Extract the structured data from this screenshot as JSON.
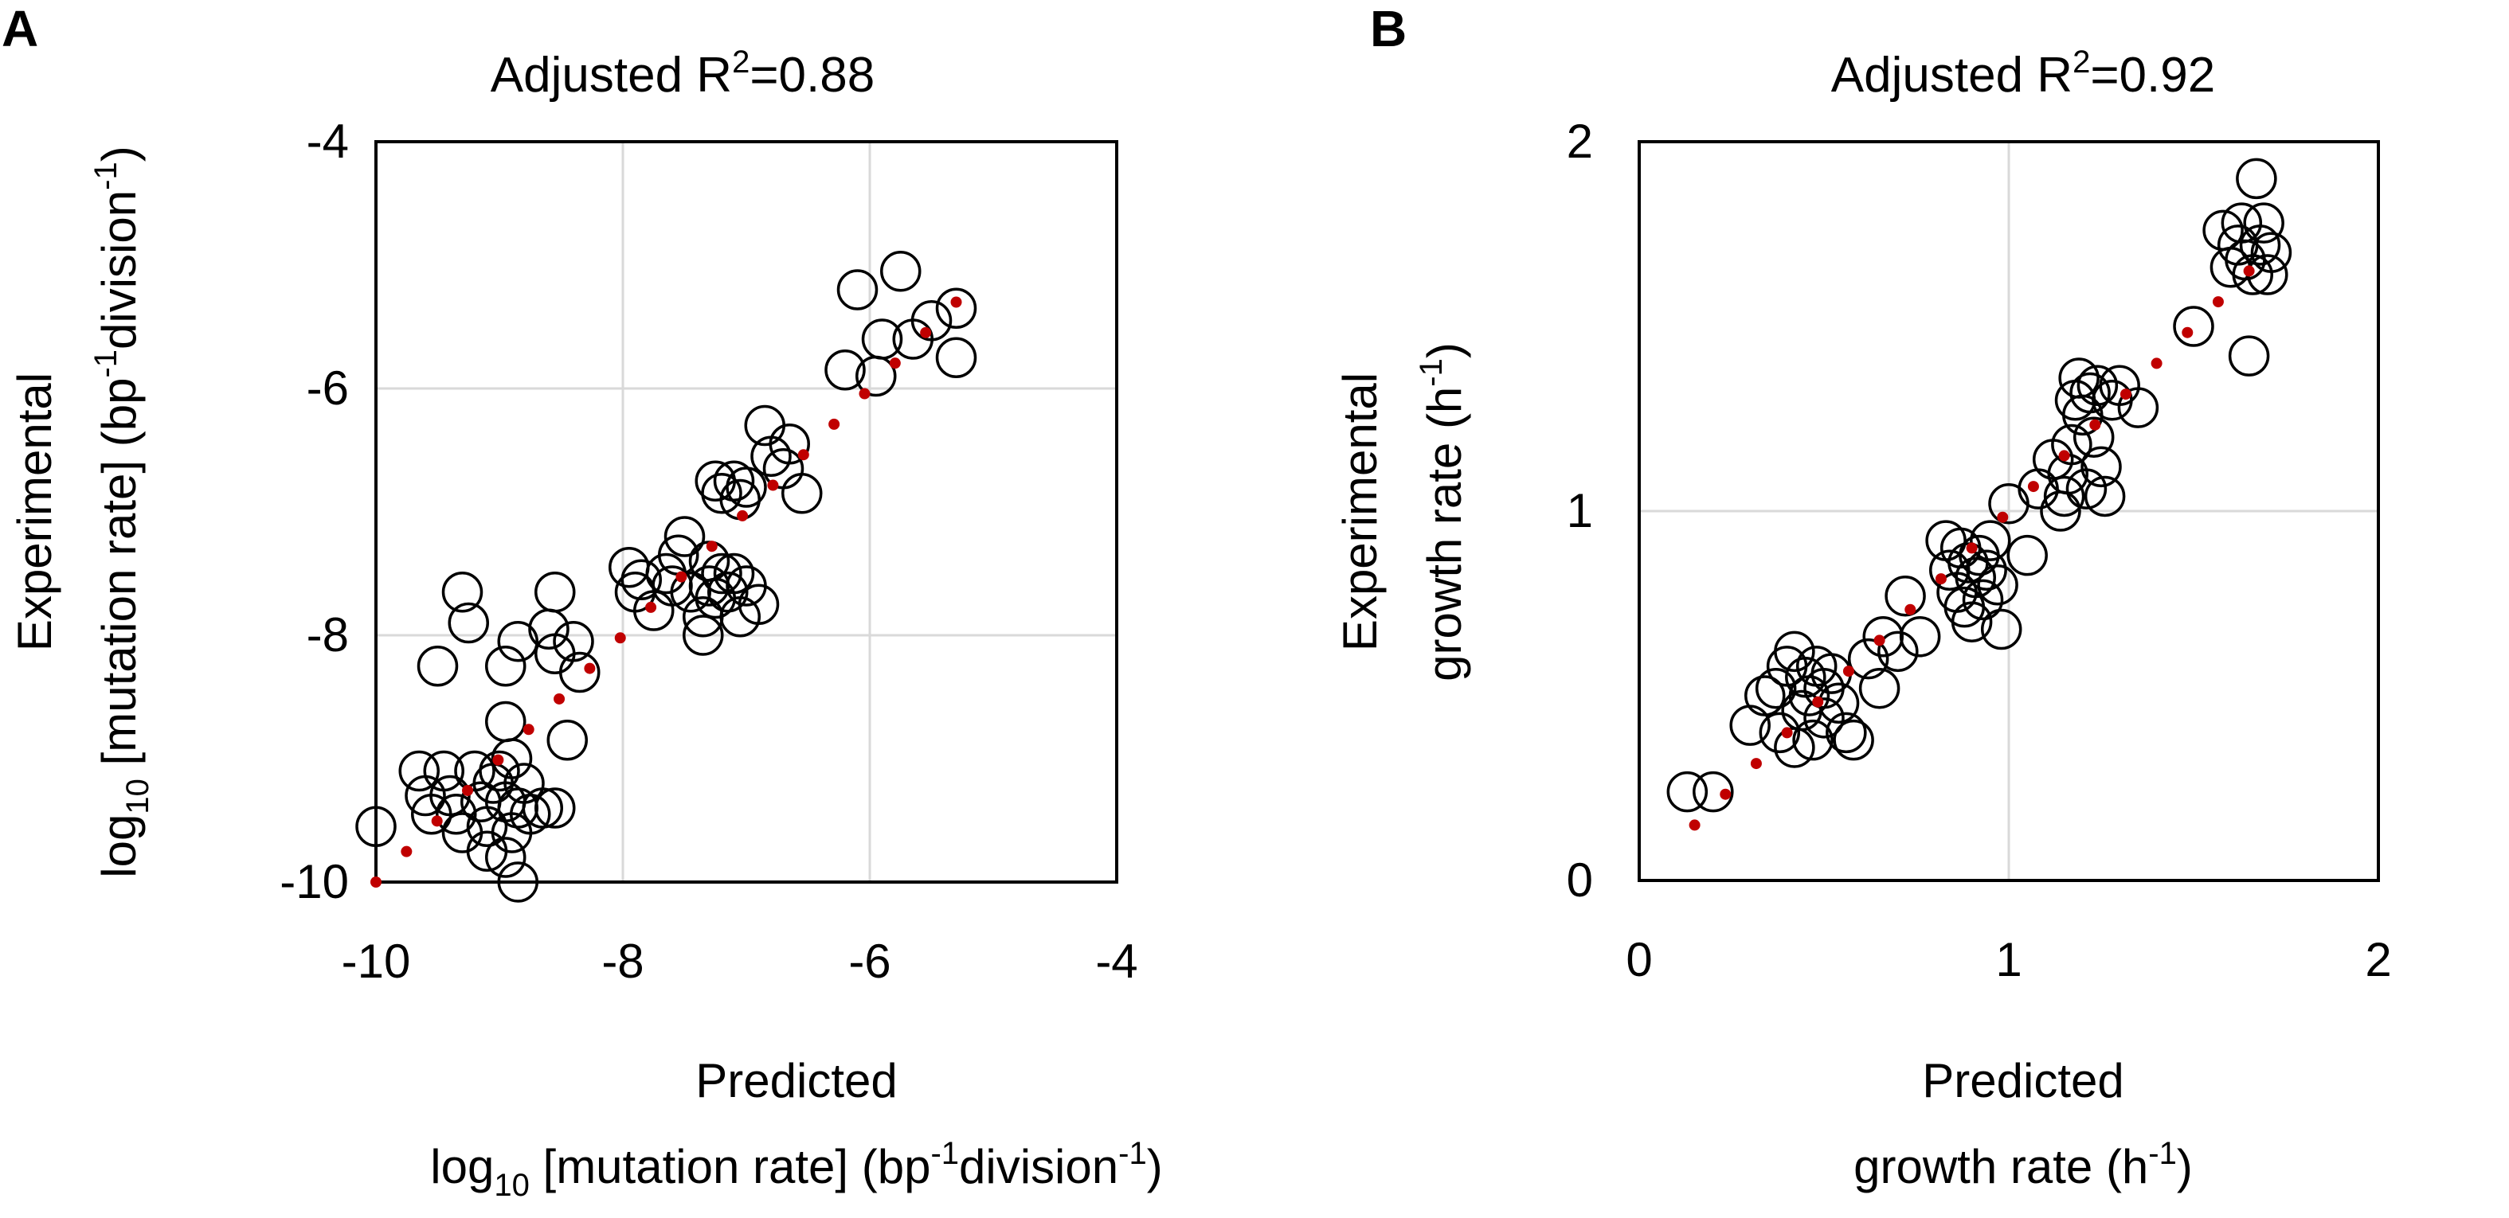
{
  "chart_data": [
    {
      "type": "scatter",
      "panel_label": "A",
      "title_main": "Adjusted R",
      "title_sup": "2",
      "title_tail": "=0.88",
      "xlabel": {
        "line1": "Predicted",
        "pre": "log",
        "sub": "10",
        "mid": " [mutation rate] (bp",
        "sup1": "-1",
        "mid2": "division",
        "sup2": "-1",
        "post": ")"
      },
      "ylabel": {
        "line1": "Experimental",
        "pre": "log",
        "sub": "10",
        "mid": " [mutation rate] (bp",
        "sup1": "-1",
        "mid2": "division",
        "sup2": "-1",
        "post": ")"
      },
      "xlim": [
        -10,
        -4
      ],
      "ylim": [
        -10,
        -4
      ],
      "xticks": [
        "-10",
        "-8",
        "-6",
        "-4"
      ],
      "yticks": [
        "-10",
        "-8",
        "-6",
        "-4"
      ],
      "xtick_values": [
        -10,
        -8,
        -6,
        -4
      ],
      "ytick_values": [
        -10,
        -8,
        -6,
        -4
      ],
      "grid": true,
      "points": [
        [
          -10.0,
          -9.55
        ],
        [
          -9.65,
          -9.1
        ],
        [
          -9.6,
          -9.3
        ],
        [
          -9.55,
          -9.45
        ],
        [
          -9.45,
          -9.1
        ],
        [
          -9.4,
          -9.3
        ],
        [
          -9.35,
          -9.45
        ],
        [
          -9.3,
          -9.6
        ],
        [
          -9.2,
          -9.1
        ],
        [
          -9.15,
          -9.35
        ],
        [
          -9.1,
          -9.55
        ],
        [
          -9.1,
          -9.75
        ],
        [
          -9.05,
          -9.2
        ],
        [
          -9.0,
          -9.1
        ],
        [
          -8.95,
          -9.35
        ],
        [
          -8.9,
          -9.6
        ],
        [
          -8.95,
          -9.8
        ],
        [
          -8.85,
          -10.0
        ],
        [
          -8.85,
          -9.4
        ],
        [
          -8.8,
          -9.2
        ],
        [
          -8.9,
          -9.0
        ],
        [
          -8.75,
          -9.45
        ],
        [
          -8.65,
          -9.4
        ],
        [
          -8.55,
          -9.4
        ],
        [
          -8.95,
          -8.7
        ],
        [
          -8.95,
          -8.25
        ],
        [
          -8.85,
          -8.05
        ],
        [
          -8.55,
          -7.65
        ],
        [
          -8.6,
          -7.95
        ],
        [
          -8.55,
          -8.15
        ],
        [
          -8.35,
          -8.3
        ],
        [
          -8.4,
          -8.05
        ],
        [
          -8.45,
          -8.85
        ],
        [
          -9.3,
          -7.65
        ],
        [
          -9.25,
          -7.9
        ],
        [
          -9.5,
          -8.25
        ],
        [
          -7.95,
          -7.45
        ],
        [
          -7.9,
          -7.65
        ],
        [
          -7.85,
          -7.55
        ],
        [
          -7.75,
          -7.8
        ],
        [
          -7.65,
          -7.5
        ],
        [
          -7.6,
          -7.6
        ],
        [
          -7.55,
          -7.35
        ],
        [
          -7.5,
          -7.2
        ],
        [
          -7.45,
          -7.65
        ],
        [
          -7.35,
          -7.85
        ],
        [
          -7.3,
          -7.4
        ],
        [
          -7.3,
          -7.6
        ],
        [
          -7.25,
          -7.7
        ],
        [
          -7.2,
          -7.5
        ],
        [
          -7.15,
          -7.65
        ],
        [
          -7.1,
          -7.5
        ],
        [
          -7.05,
          -7.85
        ],
        [
          -7.0,
          -7.6
        ],
        [
          -6.9,
          -7.75
        ],
        [
          -7.35,
          -8.0
        ],
        [
          -7.25,
          -6.75
        ],
        [
          -7.2,
          -6.85
        ],
        [
          -7.1,
          -6.75
        ],
        [
          -7.05,
          -6.9
        ],
        [
          -7.0,
          -6.8
        ],
        [
          -6.85,
          -6.3
        ],
        [
          -6.8,
          -6.55
        ],
        [
          -6.7,
          -6.65
        ],
        [
          -6.65,
          -6.45
        ],
        [
          -6.55,
          -6.85
        ],
        [
          -6.2,
          -5.85
        ],
        [
          -6.1,
          -5.2
        ],
        [
          -5.95,
          -5.9
        ],
        [
          -5.9,
          -5.6
        ],
        [
          -5.75,
          -5.05
        ],
        [
          -5.65,
          -5.6
        ],
        [
          -5.5,
          -5.45
        ],
        [
          -5.3,
          -5.35
        ],
        [
          -5.3,
          -5.75
        ]
      ],
      "fit_line": [
        [
          -10.0,
          -10.0
        ],
        [
          -5.3,
          -5.3
        ]
      ]
    },
    {
      "type": "scatter",
      "panel_label": "B",
      "title_main": "Adjusted R",
      "title_sup": "2",
      "title_tail": "=0.92",
      "xlabel": {
        "line1": "Predicted",
        "line2": "growth rate (h",
        "sup": "-1",
        "post": ")"
      },
      "ylabel": {
        "line1": "Experimental",
        "line2": "growth rate (h",
        "sup": "-1",
        "post": ")"
      },
      "xlim": [
        0,
        2
      ],
      "ylim": [
        0,
        2
      ],
      "xticks": [
        "0",
        "1",
        "2"
      ],
      "yticks": [
        "0",
        "1",
        "2"
      ],
      "xtick_values": [
        0,
        1,
        2
      ],
      "ytick_values": [
        0,
        1,
        2
      ],
      "grid": true,
      "points": [
        [
          0.13,
          0.24
        ],
        [
          0.2,
          0.24
        ],
        [
          0.3,
          0.42
        ],
        [
          0.34,
          0.5
        ],
        [
          0.37,
          0.52
        ],
        [
          0.38,
          0.4
        ],
        [
          0.4,
          0.58
        ],
        [
          0.42,
          0.36
        ],
        [
          0.42,
          0.62
        ],
        [
          0.44,
          0.46
        ],
        [
          0.45,
          0.55
        ],
        [
          0.46,
          0.5
        ],
        [
          0.47,
          0.38
        ],
        [
          0.48,
          0.58
        ],
        [
          0.5,
          0.44
        ],
        [
          0.5,
          0.52
        ],
        [
          0.52,
          0.56
        ],
        [
          0.54,
          0.48
        ],
        [
          0.56,
          0.4
        ],
        [
          0.58,
          0.38
        ],
        [
          0.62,
          0.6
        ],
        [
          0.65,
          0.52
        ],
        [
          0.66,
          0.66
        ],
        [
          0.7,
          0.62
        ],
        [
          0.72,
          0.77
        ],
        [
          0.76,
          0.66
        ],
        [
          0.83,
          0.92
        ],
        [
          0.84,
          0.84
        ],
        [
          0.86,
          0.78
        ],
        [
          0.87,
          0.9
        ],
        [
          0.88,
          0.74
        ],
        [
          0.89,
          0.86
        ],
        [
          0.9,
          0.7
        ],
        [
          0.91,
          0.82
        ],
        [
          0.92,
          0.88
        ],
        [
          0.93,
          0.76
        ],
        [
          0.94,
          0.84
        ],
        [
          0.95,
          0.92
        ],
        [
          0.97,
          0.8
        ],
        [
          0.98,
          0.68
        ],
        [
          1.0,
          1.02
        ],
        [
          1.05,
          0.88
        ],
        [
          1.08,
          1.06
        ],
        [
          1.12,
          1.14
        ],
        [
          1.14,
          1.0
        ],
        [
          1.15,
          1.04
        ],
        [
          1.16,
          1.1
        ],
        [
          1.17,
          1.18
        ],
        [
          1.18,
          1.3
        ],
        [
          1.19,
          1.36
        ],
        [
          1.2,
          1.26
        ],
        [
          1.21,
          1.06
        ],
        [
          1.22,
          1.32
        ],
        [
          1.23,
          1.2
        ],
        [
          1.24,
          1.34
        ],
        [
          1.25,
          1.12
        ],
        [
          1.26,
          1.04
        ],
        [
          1.28,
          1.3
        ],
        [
          1.3,
          1.34
        ],
        [
          1.35,
          1.28
        ],
        [
          1.5,
          1.5
        ],
        [
          1.58,
          1.76
        ],
        [
          1.6,
          1.66
        ],
        [
          1.62,
          1.72
        ],
        [
          1.63,
          1.78
        ],
        [
          1.64,
          1.68
        ],
        [
          1.65,
          1.42
        ],
        [
          1.66,
          1.64
        ],
        [
          1.67,
          1.9
        ],
        [
          1.68,
          1.72
        ],
        [
          1.69,
          1.78
        ],
        [
          1.7,
          1.64
        ],
        [
          1.71,
          1.7
        ]
      ],
      "fit_line": [
        [
          0.15,
          0.15
        ],
        [
          1.65,
          1.65
        ]
      ]
    }
  ]
}
